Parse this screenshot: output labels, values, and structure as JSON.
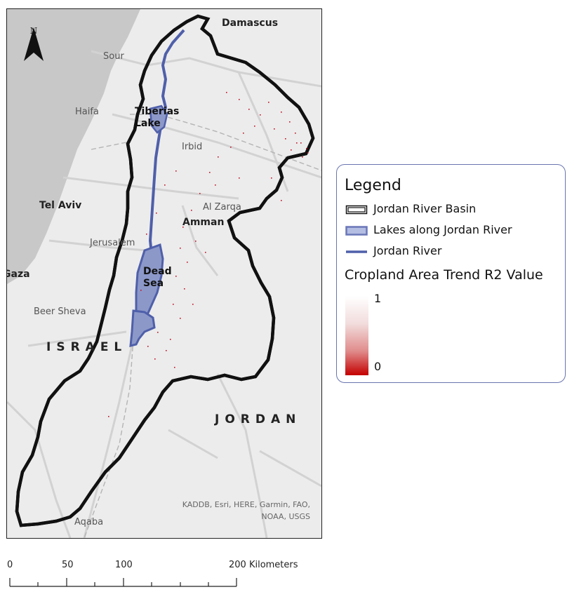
{
  "map": {
    "places": {
      "damascus": "Damascus",
      "sour": "Sour",
      "haifa": "Haifa",
      "tiberias": "Tiberias\nLake",
      "irbid": "Irbid",
      "tel_aviv": "Tel Aviv",
      "al_zarqa": "Al Zarqa",
      "amman": "Amman",
      "jerusalem": "Jerusalem",
      "gaza": "Gaza",
      "dead_sea": "Dead\nSea",
      "beer_sheva": "Beer Sheva",
      "israel": "ISRAEL",
      "jordan": "JORDAN",
      "aqaba": "Aqaba"
    },
    "north_arrow": {
      "label": "N",
      "icon": "north-arrow-icon"
    },
    "attribution_line1": "KADDB, Esri, HERE, Garmin, FAO,",
    "attribution_line2": "NOAA, USGS",
    "colors": {
      "sea": "#c8c8c8",
      "land": "#ececec",
      "river": "#4f5faa",
      "lake": "#8c98c8",
      "basin_outline": "#111111",
      "cropland_points": "#c0152a"
    }
  },
  "legend": {
    "title": "Legend",
    "items": [
      {
        "label": "Jordan River Basin",
        "symbol": "double-outline-box-icon"
      },
      {
        "label": "Lakes along Jordan River",
        "symbol": "lake-fill-box-icon"
      },
      {
        "label": "Jordan River",
        "symbol": "river-line-icon"
      }
    ],
    "ramp_title": "Cropland Area Trend R2 Value",
    "ramp_high": "1",
    "ramp_low": "0",
    "ramp_colors": [
      "#ffffff",
      "#c40000"
    ]
  },
  "scalebar": {
    "labels": [
      "0",
      "50",
      "100",
      "200 Kilometers"
    ]
  }
}
